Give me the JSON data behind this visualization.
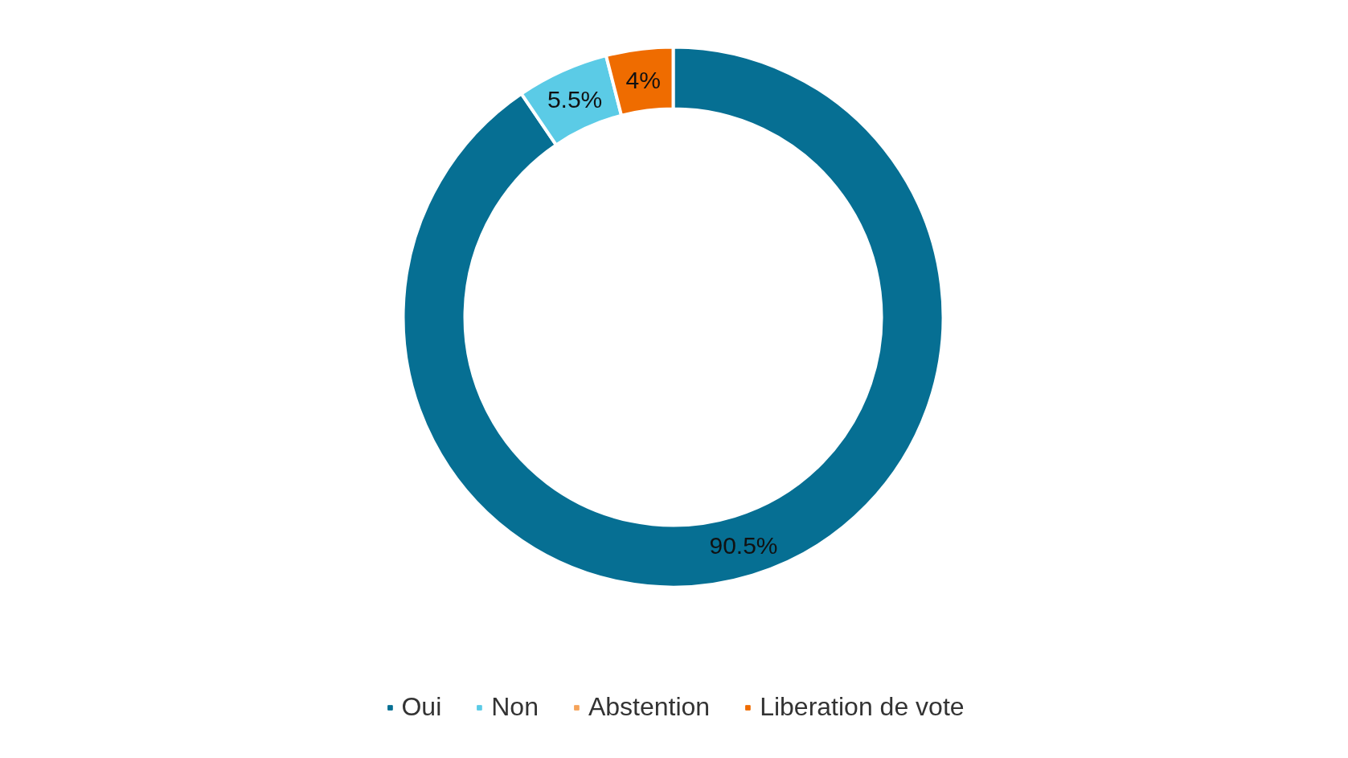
{
  "chart_data": {
    "type": "donut",
    "categories": [
      "Oui",
      "Non",
      "Abstention",
      "Liberation de vote"
    ],
    "values": [
      90.5,
      5.5,
      0,
      4
    ],
    "colors": [
      "#066f93",
      "#5bcbe6",
      "#f5a35a",
      "#ef6c00"
    ],
    "value_labels": [
      "90.5%",
      "5.5%",
      null,
      "4%"
    ],
    "legend": "bottom"
  }
}
